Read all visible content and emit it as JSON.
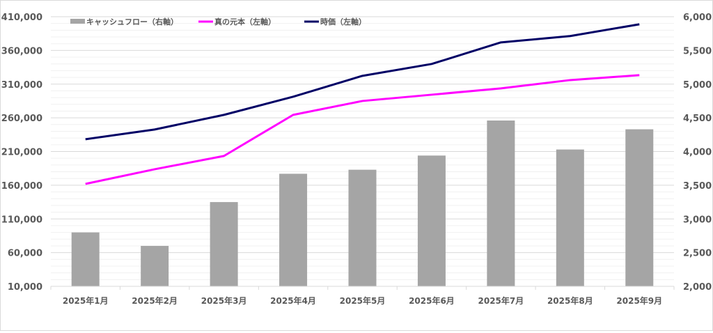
{
  "chart_data": {
    "type": "bar+line",
    "title": "",
    "categories": [
      "2025年1月",
      "2025年2月",
      "2025年3月",
      "2025年4月",
      "2025年5月",
      "2025年6月",
      "2025年7月",
      "2025年8月",
      "2025年9月"
    ],
    "left_axis": {
      "min": 10000,
      "max": 410000,
      "step": 50000,
      "minor_step": 10000,
      "tick_labels": [
        "10,000",
        "60,000",
        "110,000",
        "160,000",
        "210,000",
        "260,000",
        "310,000",
        "360,000",
        "410,000"
      ]
    },
    "right_axis": {
      "min": 2000,
      "max": 6000,
      "step": 500,
      "tick_labels": [
        "2,000",
        "2,500",
        "3,000",
        "3,500",
        "4,000",
        "4,500",
        "5,000",
        "5,500",
        "6,000"
      ]
    },
    "series": [
      {
        "name": "キャッシュフロー（右軸）",
        "type": "bar",
        "axis": "right",
        "color": "#a5a5a5",
        "values": [
          2800,
          2600,
          3250,
          3670,
          3730,
          3940,
          4460,
          4030,
          4330
        ]
      },
      {
        "name": "真の元本（左軸）",
        "type": "line",
        "axis": "left",
        "color": "#ff00ff",
        "values": [
          162000,
          183700,
          203400,
          264400,
          285000,
          294300,
          303700,
          316000,
          323300
        ]
      },
      {
        "name": "時価（左軸）",
        "type": "line",
        "axis": "left",
        "color": "#000066",
        "values": [
          228200,
          242700,
          264400,
          291300,
          322300,
          339900,
          371900,
          381300,
          398800
        ]
      }
    ],
    "grid": true,
    "legend_position": "top"
  }
}
